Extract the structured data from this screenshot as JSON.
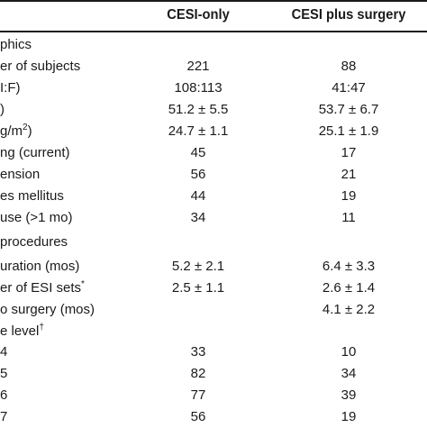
{
  "header": {
    "col1": "CESI-only",
    "col2": "CESI plus surgery"
  },
  "rows": [
    {
      "label": "phics",
      "c1": "",
      "c2": ""
    },
    {
      "label": "er of subjects",
      "c1": "221",
      "c2": "88"
    },
    {
      "label": "I:F)",
      "c1": "108:113",
      "c2": "41:47"
    },
    {
      "label": ")",
      "c1": "51.2 ± 5.5",
      "c2": "53.7 ± 6.7"
    },
    {
      "label": "g/m",
      "sup": "2",
      "label_tail": ")",
      "c1": "24.7 ± 1.1",
      "c2": "25.1 ± 1.9"
    },
    {
      "label": "ng (current)",
      "c1": "45",
      "c2": "17"
    },
    {
      "label": "ension",
      "c1": "56",
      "c2": "21"
    },
    {
      "label": "es mellitus",
      "c1": "44",
      "c2": "19"
    },
    {
      "label": "use (>1 mo)",
      "c1": "34",
      "c2": "11"
    },
    {
      "label": "procedures",
      "c1": "",
      "c2": ""
    },
    {
      "label": "uration (mos)",
      "c1": "5.2 ± 2.1",
      "c2": "6.4 ± 3.3"
    },
    {
      "label": "er of ESI sets",
      "sup": "*",
      "c1": "2.5 ± 1.1",
      "c2": "2.6 ± 1.4"
    },
    {
      "label": "o surgery (mos)",
      "c1": "",
      "c2": "4.1 ± 2.2"
    },
    {
      "label": "e level",
      "sup": "†",
      "c1": "",
      "c2": ""
    },
    {
      "label": "4",
      "c1": "33",
      "c2": "10"
    },
    {
      "label": "5",
      "c1": "82",
      "c2": "34"
    },
    {
      "label": "6",
      "c1": "77",
      "c2": "39"
    },
    {
      "label": "7",
      "c1": "56",
      "c2": "19"
    }
  ]
}
